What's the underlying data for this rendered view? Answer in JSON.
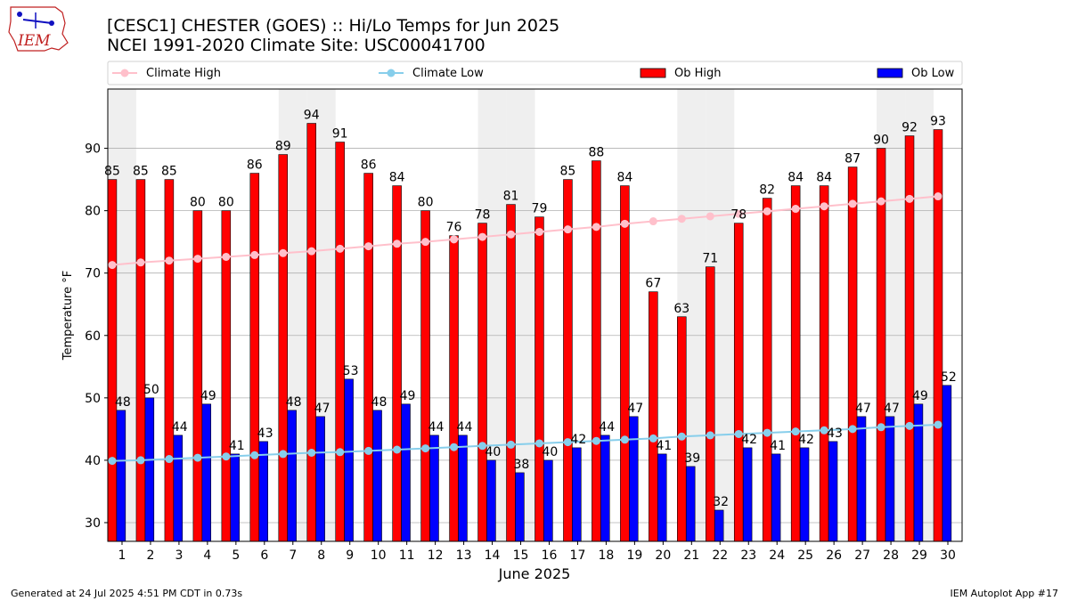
{
  "header": {
    "title_line1": "[CESC1] CHESTER (GOES) :: Hi/Lo Temps for Jun 2025",
    "title_line2": "NCEI 1991-2020 Climate Site: USC00041700",
    "logo_text": "IEM"
  },
  "footer": {
    "left": "Generated at 24 Jul 2025 4:51 PM CDT in 0.73s",
    "right": "IEM Autoplot App #17"
  },
  "chart_data": {
    "type": "bar",
    "title": "[CESC1] CHESTER (GOES) :: Hi/Lo Temps for Jun 2025",
    "subtitle": "NCEI 1991-2020 Climate Site: USC00041700",
    "xlabel": "June 2025",
    "ylabel": "Temperature °F",
    "ylim": [
      27,
      99.5
    ],
    "yticks": [
      30,
      40,
      50,
      60,
      70,
      80,
      90
    ],
    "grid": true,
    "legend_position": "top",
    "weekend_shading_days": [
      1,
      7,
      8,
      14,
      15,
      21,
      22,
      28,
      29
    ],
    "categories": [
      "1",
      "2",
      "3",
      "4",
      "5",
      "6",
      "7",
      "8",
      "9",
      "10",
      "11",
      "12",
      "13",
      "14",
      "15",
      "16",
      "17",
      "18",
      "19",
      "20",
      "21",
      "22",
      "23",
      "24",
      "25",
      "26",
      "27",
      "28",
      "29",
      "30"
    ],
    "series": [
      {
        "name": "Ob High",
        "kind": "bar",
        "color": "#ff0000",
        "values": [
          85,
          85,
          85,
          80,
          80,
          86,
          89,
          94,
          91,
          86,
          84,
          80,
          76,
          78,
          81,
          79,
          85,
          88,
          84,
          67,
          63,
          71,
          78,
          82,
          84,
          84,
          87,
          90,
          92,
          93
        ]
      },
      {
        "name": "Ob Low",
        "kind": "bar",
        "color": "#0000ff",
        "values": [
          48,
          50,
          44,
          49,
          41,
          43,
          48,
          47,
          53,
          48,
          49,
          44,
          44,
          40,
          38,
          40,
          42,
          44,
          47,
          41,
          39,
          32,
          42,
          41,
          42,
          43,
          47,
          47,
          49,
          52
        ]
      },
      {
        "name": "Climate High",
        "kind": "line",
        "color": "#ffc0cb",
        "values": [
          71.3,
          71.7,
          72.0,
          72.3,
          72.6,
          72.9,
          73.2,
          73.5,
          73.9,
          74.3,
          74.7,
          75.0,
          75.4,
          75.8,
          76.2,
          76.6,
          77.0,
          77.4,
          77.9,
          78.3,
          78.7,
          79.1,
          79.5,
          79.9,
          80.3,
          80.7,
          81.1,
          81.5,
          81.9,
          82.3
        ]
      },
      {
        "name": "Climate Low",
        "kind": "line",
        "color": "#87ceeb",
        "values": [
          39.9,
          40.0,
          40.2,
          40.4,
          40.6,
          40.8,
          41.0,
          41.2,
          41.3,
          41.5,
          41.7,
          41.9,
          42.1,
          42.3,
          42.5,
          42.7,
          42.9,
          43.1,
          43.3,
          43.5,
          43.8,
          44.0,
          44.2,
          44.4,
          44.6,
          44.8,
          45.0,
          45.3,
          45.5,
          45.7
        ]
      }
    ]
  }
}
